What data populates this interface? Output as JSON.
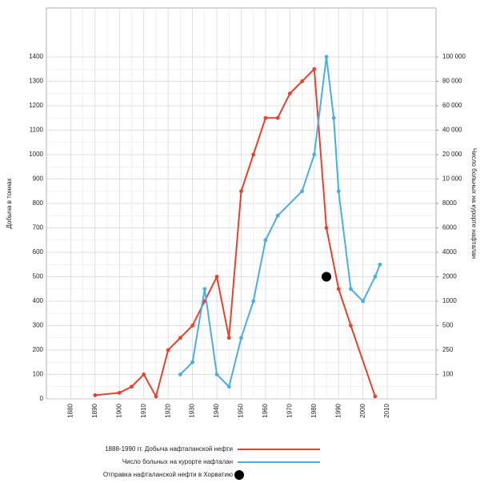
{
  "chart_data": {
    "type": "line",
    "ylabel": "Добыча в тоннах",
    "y2label": "Число больных на курорте нафталан",
    "xlim": [
      1870,
      2030
    ],
    "xticks": [
      1880,
      1890,
      1900,
      1910,
      1920,
      1930,
      1940,
      1950,
      1960,
      1970,
      1980,
      1990,
      2000,
      2010
    ],
    "ylim": [
      0,
      1600
    ],
    "yticks": [
      0,
      100,
      200,
      300,
      400,
      500,
      600,
      700,
      800,
      900,
      1000,
      1100,
      1200,
      1300,
      1400
    ],
    "y2lim": [
      0,
      140000
    ],
    "y2ticks": [
      100,
      250,
      500,
      1000,
      2000,
      4000,
      6000,
      8000,
      {
        "value": 10000,
        "label": "10 000"
      },
      {
        "value": 20000,
        "label": "20 000"
      },
      {
        "value": 40000,
        "label": "40 000"
      },
      {
        "value": 60000,
        "label": "60 000"
      },
      {
        "value": 80000,
        "label": "80 000"
      },
      {
        "value": 100000,
        "label": "100 000"
      }
    ],
    "grid": true,
    "series": [
      {
        "name": "1888-1990 гг. Добыча нафталанской нефти",
        "color": "#e8412c",
        "style": "line",
        "x": [
          1890,
          1900,
          1905,
          1910,
          1915,
          1920,
          1925,
          1930,
          1935,
          1940,
          1945,
          1950,
          1955,
          1960,
          1965,
          1970,
          1975,
          1980,
          1985,
          1990,
          1995,
          2005
        ],
        "values": [
          15,
          25,
          50,
          100,
          10,
          200,
          250,
          300,
          400,
          500,
          250,
          850,
          1000,
          1150,
          1150,
          1250,
          1300,
          1350,
          700,
          450,
          300,
          10
        ]
      },
      {
        "name": "Число больных на курорте нафталан",
        "color": "#4aaee6",
        "style": "line",
        "axis": "y2",
        "x": [
          1925,
          1930,
          1935,
          1940,
          1945,
          1950,
          1955,
          1960,
          1965,
          1975,
          1980,
          1985,
          1988,
          1990,
          1995,
          2000,
          2005,
          2007
        ],
        "values": [
          100,
          175,
          1500,
          100,
          50,
          375,
          1000,
          5000,
          7000,
          9000,
          20000,
          100000,
          50000,
          9000,
          1500,
          1000,
          2000,
          3000
        ]
      },
      {
        "name": "Отправка нафталанской нефти в Хорватию",
        "color": "#000000",
        "style": "marker",
        "x": [
          1985
        ],
        "values": [
          500
        ]
      }
    ]
  }
}
